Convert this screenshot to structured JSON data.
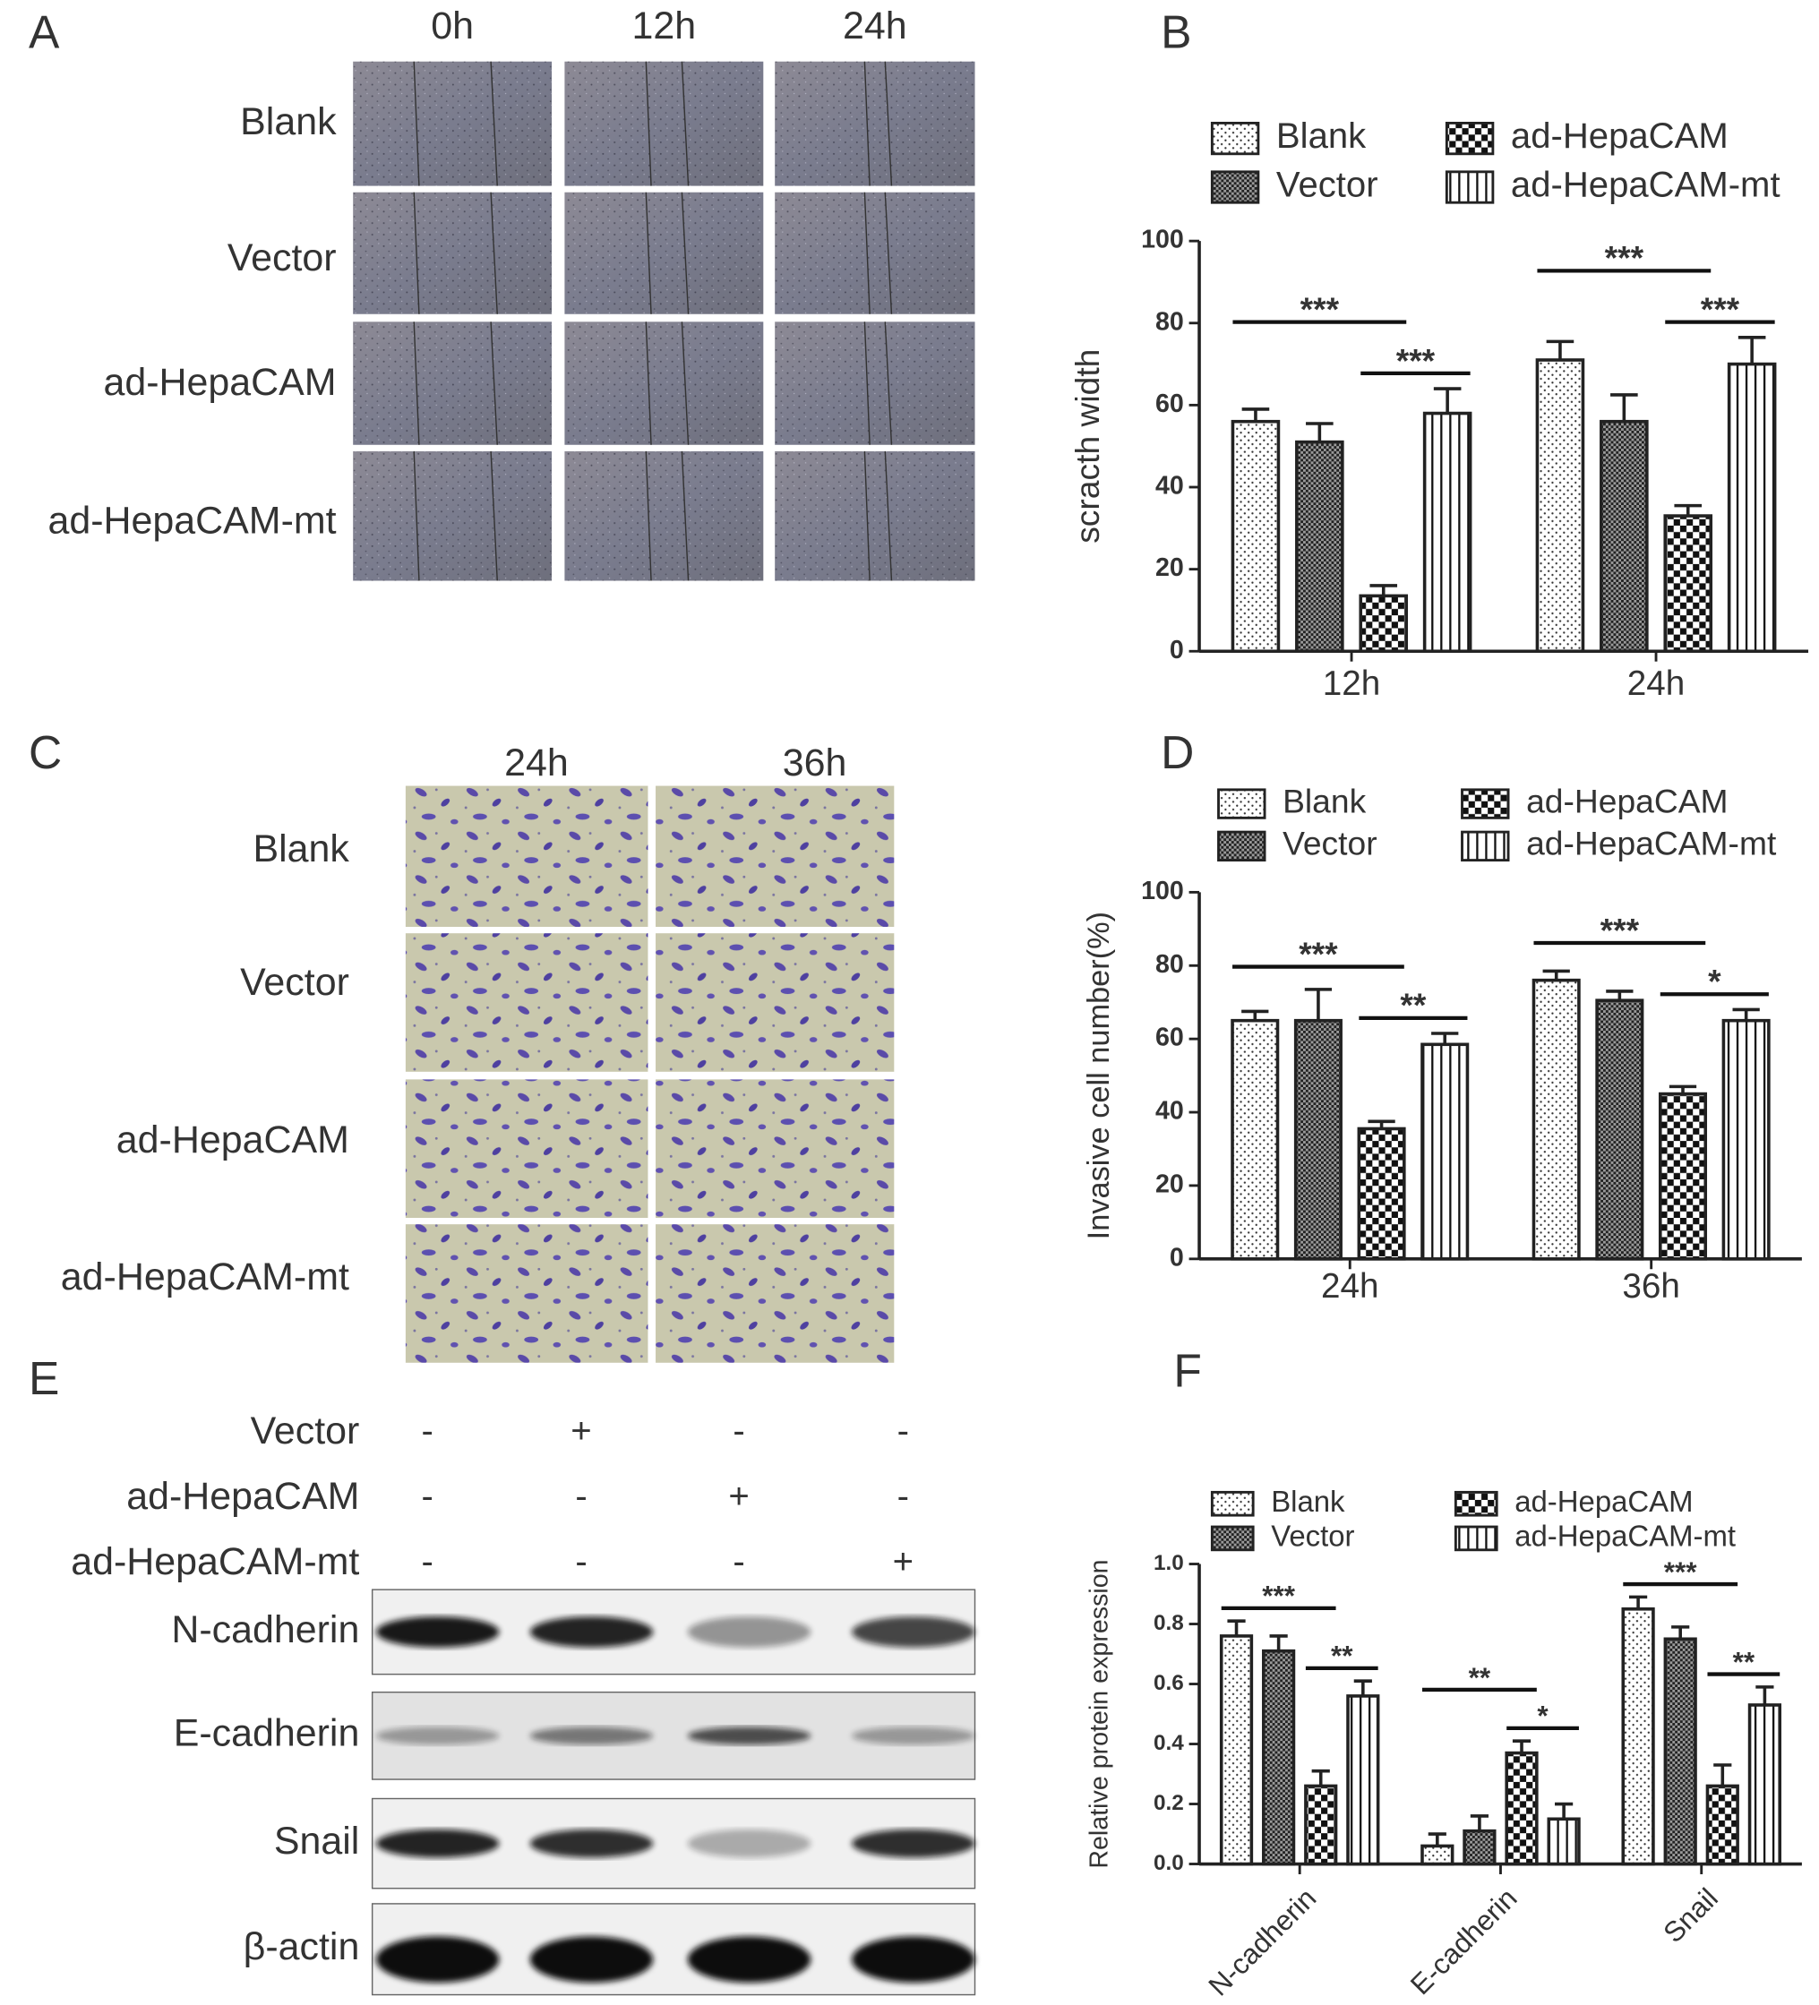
{
  "panel_labels": [
    "A",
    "B",
    "C",
    "D",
    "E",
    "F"
  ],
  "panel_a": {
    "columns": [
      "0h",
      "12h",
      "24h"
    ],
    "rows": [
      "Blank",
      "Vector",
      "ad-HepaCAM",
      "ad-HepaCAM-mt"
    ]
  },
  "panel_c": {
    "columns": [
      "24h",
      "36h"
    ],
    "rows": [
      "Blank",
      "Vector",
      "ad-HepaCAM",
      "ad-HepaCAM-mt"
    ]
  },
  "panel_e": {
    "conditions": [
      {
        "label": "Vector",
        "signs": [
          "-",
          "+",
          "-",
          "-"
        ]
      },
      {
        "label": "ad-HepaCAM",
        "signs": [
          "-",
          "-",
          "+",
          "-"
        ]
      },
      {
        "label": "ad-HepaCAM-mt",
        "signs": [
          "-",
          "-",
          "-",
          "+"
        ]
      }
    ],
    "blots": [
      "N-cadherin",
      "E-cadherin",
      "Snail",
      "β-actin"
    ]
  },
  "chart_data": [
    {
      "type": "bar",
      "ylabel": "scracth width",
      "categories": [
        "12h",
        "24h"
      ],
      "series": [
        {
          "name": "Blank",
          "pattern": "dots",
          "values": [
            56,
            71
          ],
          "errors": [
            3,
            4.5
          ]
        },
        {
          "name": "Vector",
          "pattern": "checker-fine",
          "values": [
            51,
            56
          ],
          "errors": [
            4.5,
            6.5
          ]
        },
        {
          "name": "ad-HepaCAM",
          "pattern": "checker",
          "values": [
            13.5,
            33
          ],
          "errors": [
            2.5,
            2.5
          ]
        },
        {
          "name": "ad-HepaCAM-mt",
          "pattern": "stripes",
          "values": [
            58,
            70
          ],
          "errors": [
            6,
            6.5
          ]
        }
      ],
      "ylim": [
        0,
        100
      ],
      "yticks": [
        0,
        20,
        40,
        60,
        80,
        100
      ],
      "annotations": [
        {
          "group": "12h",
          "between": [
            "Blank",
            "ad-HepaCAM"
          ],
          "text": "***"
        },
        {
          "group": "12h",
          "between": [
            "ad-HepaCAM",
            "ad-HepaCAM-mt"
          ],
          "text": "***"
        },
        {
          "group": "24h",
          "between": [
            "Blank",
            "ad-HepaCAM"
          ],
          "text": "***"
        },
        {
          "group": "24h",
          "between": [
            "ad-HepaCAM",
            "ad-HepaCAM-mt"
          ],
          "text": "***"
        }
      ]
    },
    {
      "type": "bar",
      "ylabel": "Invasive cell number(%)",
      "categories": [
        "24h",
        "36h"
      ],
      "series": [
        {
          "name": "Blank",
          "pattern": "dots",
          "values": [
            65,
            76
          ],
          "errors": [
            2.5,
            2.5
          ]
        },
        {
          "name": "Vector",
          "pattern": "checker-fine",
          "values": [
            65,
            70.5
          ],
          "errors": [
            8.5,
            2.5
          ]
        },
        {
          "name": "ad-HepaCAM",
          "pattern": "checker",
          "values": [
            35.5,
            45
          ],
          "errors": [
            2,
            2
          ]
        },
        {
          "name": "ad-HepaCAM-mt",
          "pattern": "stripes",
          "values": [
            58.5,
            65
          ],
          "errors": [
            3,
            3
          ]
        }
      ],
      "ylim": [
        0,
        100
      ],
      "yticks": [
        0,
        20,
        40,
        60,
        80,
        100
      ],
      "annotations": [
        {
          "group": "24h",
          "between": [
            "Blank",
            "ad-HepaCAM"
          ],
          "text": "***"
        },
        {
          "group": "24h",
          "between": [
            "ad-HepaCAM",
            "ad-HepaCAM-mt"
          ],
          "text": "**"
        },
        {
          "group": "36h",
          "between": [
            "Blank",
            "ad-HepaCAM"
          ],
          "text": "***"
        },
        {
          "group": "36h",
          "between": [
            "ad-HepaCAM",
            "ad-HepaCAM-mt"
          ],
          "text": "*"
        }
      ]
    },
    {
      "type": "bar",
      "ylabel": "Relative protein expression",
      "categories": [
        "N-cadherin",
        "E-cadherin",
        "Snail"
      ],
      "xtick_rotation": 45,
      "series": [
        {
          "name": "Blank",
          "pattern": "dots",
          "values": [
            0.76,
            0.06,
            0.85
          ],
          "errors": [
            0.05,
            0.04,
            0.04
          ]
        },
        {
          "name": "Vector",
          "pattern": "checker-fine",
          "values": [
            0.71,
            0.11,
            0.75
          ],
          "errors": [
            0.05,
            0.05,
            0.04
          ]
        },
        {
          "name": "ad-HepaCAM",
          "pattern": "checker",
          "values": [
            0.26,
            0.37,
            0.26
          ],
          "errors": [
            0.05,
            0.04,
            0.07
          ]
        },
        {
          "name": "ad-HepaCAM-mt",
          "pattern": "stripes",
          "values": [
            0.56,
            0.15,
            0.53
          ],
          "errors": [
            0.05,
            0.05,
            0.06
          ]
        }
      ],
      "ylim": [
        0,
        1
      ],
      "yticks": [
        {
          "value": 0,
          "label": "0.0"
        },
        0.2,
        0.4,
        0.6,
        0.8,
        {
          "value": 1,
          "label": "1.0"
        }
      ],
      "annotations": [
        {
          "group": "N-cadherin",
          "between": [
            "Blank",
            "ad-HepaCAM"
          ],
          "text": "***"
        },
        {
          "group": "N-cadherin",
          "between": [
            "ad-HepaCAM",
            "ad-HepaCAM-mt"
          ],
          "text": "**"
        },
        {
          "group": "E-cadherin",
          "between": [
            "Blank",
            "ad-HepaCAM"
          ],
          "text": "**"
        },
        {
          "group": "E-cadherin",
          "between": [
            "ad-HepaCAM",
            "ad-HepaCAM-mt"
          ],
          "text": "*"
        },
        {
          "group": "Snail",
          "between": [
            "Blank",
            "ad-HepaCAM"
          ],
          "text": "***"
        },
        {
          "group": "Snail",
          "between": [
            "ad-HepaCAM",
            "ad-HepaCAM-mt"
          ],
          "text": "**"
        }
      ]
    }
  ]
}
